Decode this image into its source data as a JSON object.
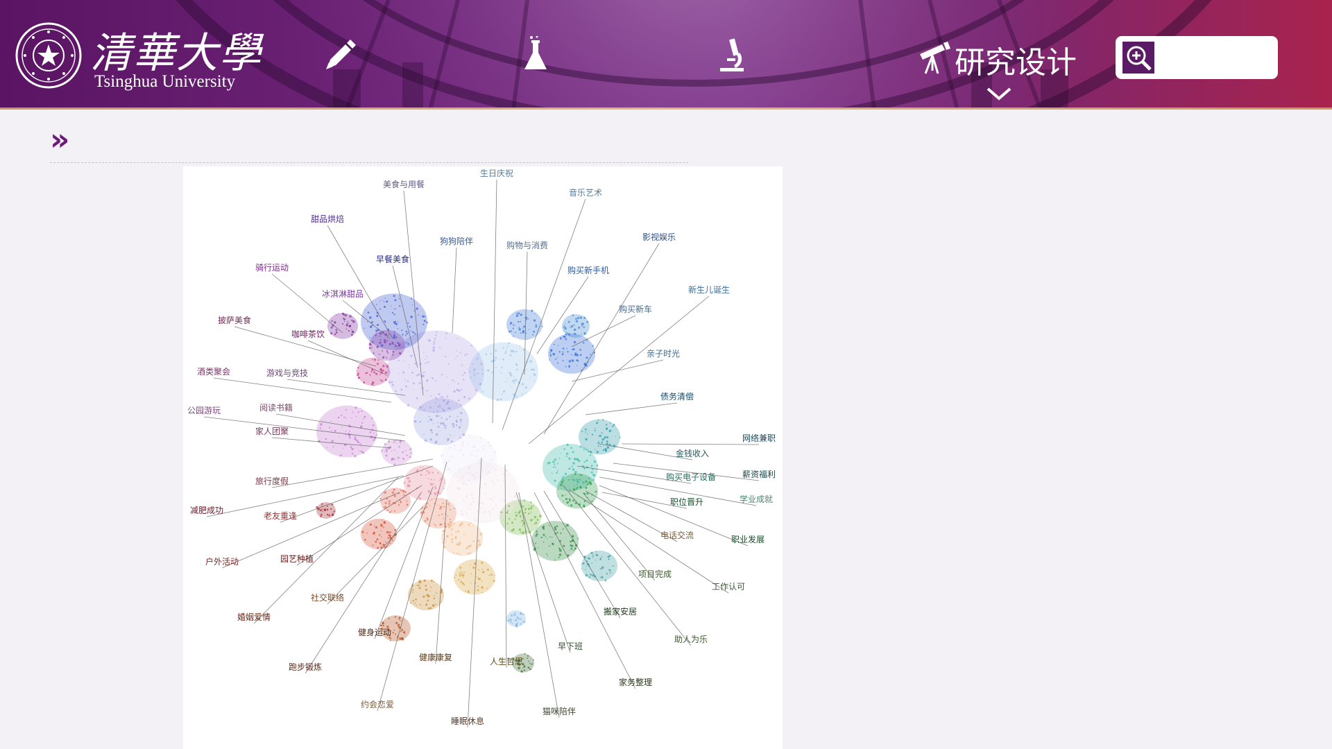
{
  "header": {
    "logo_title": "清華大學",
    "logo_subtitle": "Tsinghua University",
    "nav": [
      {
        "id": "writing",
        "icon": "pencil-icon"
      },
      {
        "id": "experiment",
        "icon": "flask-icon"
      },
      {
        "id": "microscope",
        "icon": "microscope-icon"
      },
      {
        "id": "research-design",
        "icon": "telescope-icon",
        "label": "研究设计",
        "active": true
      }
    ],
    "search": {
      "placeholder": "",
      "value": "",
      "icon": "search-zoom-icon"
    }
  },
  "breadcrumb": {
    "marker": "»"
  },
  "colors": {
    "header_start": "#5a1463",
    "header_end": "#a8234d",
    "accent": "#6b1a7c",
    "background": "#f4f1f6"
  },
  "figure": {
    "labels": [
      {
        "text": "生日庆祝",
        "color": "#5a7898"
      },
      {
        "text": "美食与用餐",
        "color": "#5b5d8a"
      },
      {
        "text": "音乐艺术",
        "color": "#5b7c9a"
      },
      {
        "text": "甜品烘焙",
        "color": "#4b2a8c"
      },
      {
        "text": "狗狗陪伴",
        "color": "#3a5a9a"
      },
      {
        "text": "购物与消费",
        "color": "#5a6f8a"
      },
      {
        "text": "影视娱乐",
        "color": "#2e4e8c"
      },
      {
        "text": "早餐美食",
        "color": "#2a2a8a"
      },
      {
        "text": "购买新手机",
        "color": "#2e5a9c"
      },
      {
        "text": "骑行运动",
        "color": "#7a2a8a"
      },
      {
        "text": "新生儿诞生",
        "color": "#3e6e9a"
      },
      {
        "text": "冰淇淋甜品",
        "color": "#7a3a9c"
      },
      {
        "text": "购买新车",
        "color": "#4a6a90"
      },
      {
        "text": "披萨美食",
        "color": "#7a2a5a"
      },
      {
        "text": "咖啡茶饮",
        "color": "#6a1a5a"
      },
      {
        "text": "亲子时光",
        "color": "#3a6a90"
      },
      {
        "text": "酒类聚会",
        "color": "#7a3a6a"
      },
      {
        "text": "游戏与竞技",
        "color": "#6a4a7a"
      },
      {
        "text": "债务清偿",
        "color": "#1a4a6a"
      },
      {
        "text": "公园游玩",
        "color": "#7a4a7a"
      },
      {
        "text": "阅读书籍",
        "color": "#7a4a6a"
      },
      {
        "text": "网络兼职",
        "color": "#1a4a5a"
      },
      {
        "text": "家人团聚",
        "color": "#7a3a5a"
      },
      {
        "text": "金钱收入",
        "color": "#2a5a5a"
      },
      {
        "text": "薪资福利",
        "color": "#1a4a4a"
      },
      {
        "text": "旅行度假",
        "color": "#7a3a4a"
      },
      {
        "text": "购买电子设备",
        "color": "#2a6a5a"
      },
      {
        "text": "学业成就",
        "color": "#4a8a6a"
      },
      {
        "text": "减肥成功",
        "color": "#6a1a2a"
      },
      {
        "text": "职位晋升",
        "color": "#1a4a2a"
      },
      {
        "text": "老友重逢",
        "color": "#8a3a3a"
      },
      {
        "text": "电话交流",
        "color": "#7a5a3a"
      },
      {
        "text": "职业发展",
        "color": "#1a4a2a"
      },
      {
        "text": "户外活动",
        "color": "#7a2a2a"
      },
      {
        "text": "园艺种植",
        "color": "#6a1a1a"
      },
      {
        "text": "项目完成",
        "color": "#3a5a2a"
      },
      {
        "text": "工作认可",
        "color": "#3a5a3a"
      },
      {
        "text": "社交联络",
        "color": "#7a4a2a"
      },
      {
        "text": "婚姻爱情",
        "color": "#6a2a1a"
      },
      {
        "text": "搬家安居",
        "color": "#1a3a1a"
      },
      {
        "text": "健身运动",
        "color": "#4a2a1a"
      },
      {
        "text": "助人为乐",
        "color": "#3a5a2a"
      },
      {
        "text": "早下班",
        "color": "#2a4a2a"
      },
      {
        "text": "跑步锻炼",
        "color": "#5a2a1a"
      },
      {
        "text": "健康康复",
        "color": "#5a3a1a"
      },
      {
        "text": "人生哲思",
        "color": "#5a4a1a"
      },
      {
        "text": "家务整理",
        "color": "#2a3a1a"
      },
      {
        "text": "约会恋爱",
        "color": "#7a5a3a"
      },
      {
        "text": "猫咪陪伴",
        "color": "#3a4a2a"
      },
      {
        "text": "睡眠休息",
        "color": "#5a3a2a"
      }
    ]
  }
}
